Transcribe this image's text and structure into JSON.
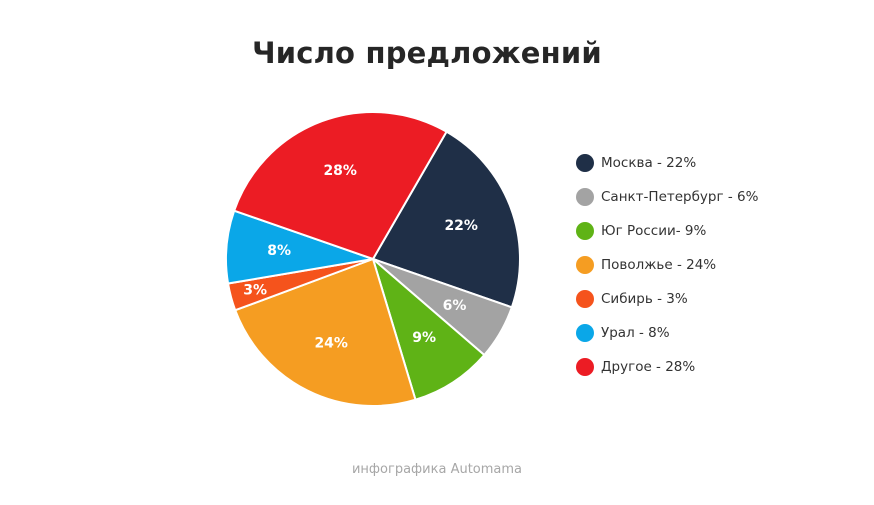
{
  "chart_data": {
    "type": "pie",
    "title": "Число предложений",
    "slices": [
      {
        "label": "Москва - 22%",
        "value": 22,
        "data_label": "22%",
        "color": "#1f2f47"
      },
      {
        "label": "Санкт-Петербург - 6%",
        "value": 6,
        "data_label": "6%",
        "color": "#a3a3a3"
      },
      {
        "label": "Юг России- 9%",
        "value": 9,
        "data_label": "9%",
        "color": "#5fb316"
      },
      {
        "label": "Поволжье - 24%",
        "value": 24,
        "data_label": "24%",
        "color": "#f59d22"
      },
      {
        "label": "Сибирь - 3%",
        "value": 3,
        "data_label": "3%",
        "color": "#f5531c"
      },
      {
        "label": "Урал - 8%",
        "value": 8,
        "data_label": "8%",
        "color": "#0aa7e8"
      },
      {
        "label": "Другое - 28%",
        "value": 28,
        "data_label": "28%",
        "color": "#ec1c24"
      }
    ],
    "start_angle_deg": 30,
    "direction": "clockwise",
    "legend_position": "right"
  },
  "footer": {
    "credit": "инфографика Automama"
  }
}
